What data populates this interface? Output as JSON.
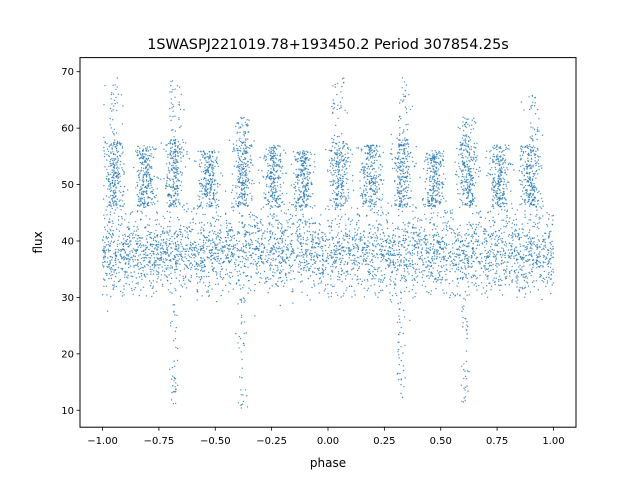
{
  "chart_data": {
    "type": "scatter",
    "title": "1SWASPJ221019.78+193450.2 Period 307854.25s",
    "xlabel": "phase",
    "ylabel": "flux",
    "xlim": [
      -1.1,
      1.1
    ],
    "ylim": [
      7.0,
      72.5
    ],
    "xticks": [
      -1.0,
      -0.75,
      -0.5,
      -0.25,
      0.0,
      0.25,
      0.5,
      0.75,
      1.0
    ],
    "xtick_labels": [
      "−1.00",
      "−0.75",
      "−0.50",
      "−0.25",
      "0.00",
      "0.25",
      "0.50",
      "0.75",
      "1.00"
    ],
    "yticks": [
      10,
      20,
      30,
      40,
      50,
      60,
      70
    ],
    "ytick_labels": [
      "10",
      "20",
      "30",
      "40",
      "50",
      "60",
      "70"
    ],
    "grid": false,
    "legend": "none",
    "marker_color": "#1f77b4",
    "series": [
      {
        "phase_range": [
          -1.0,
          1.0
        ],
        "baseline_flux_range": [
          30,
          46
        ],
        "baseline_median_flux": 38,
        "flare_clusters": [
          {
            "phase": -0.95,
            "flux_range": [
              46,
              58
            ],
            "max_flux": 69
          },
          {
            "phase": -0.81,
            "flux_range": [
              46,
              57
            ]
          },
          {
            "phase": -0.68,
            "flux_range": [
              46,
              58
            ],
            "max_flux": 69
          },
          {
            "phase": -0.53,
            "flux_range": [
              46,
              56
            ]
          },
          {
            "phase": -0.38,
            "flux_range": [
              46,
              58
            ],
            "max_flux": 62
          },
          {
            "phase": -0.24,
            "flux_range": [
              46,
              57
            ]
          },
          {
            "phase": -0.11,
            "flux_range": [
              46,
              56
            ]
          },
          {
            "phase": 0.05,
            "flux_range": [
              46,
              58
            ],
            "max_flux": 69
          },
          {
            "phase": 0.19,
            "flux_range": [
              46,
              57
            ]
          },
          {
            "phase": 0.33,
            "flux_range": [
              46,
              58
            ],
            "max_flux": 69
          },
          {
            "phase": 0.47,
            "flux_range": [
              46,
              56
            ]
          },
          {
            "phase": 0.62,
            "flux_range": [
              46,
              58
            ],
            "max_flux": 62
          },
          {
            "phase": 0.76,
            "flux_range": [
              46,
              57
            ]
          },
          {
            "phase": 0.9,
            "flux_range": [
              46,
              57
            ],
            "max_flux": 66
          }
        ],
        "dips": [
          {
            "phase": -0.68,
            "min_flux": 11
          },
          {
            "phase": -0.38,
            "min_flux": 10
          },
          {
            "phase": 0.32,
            "min_flux": 12
          },
          {
            "phase": 0.61,
            "min_flux": 11
          }
        ]
      }
    ]
  }
}
